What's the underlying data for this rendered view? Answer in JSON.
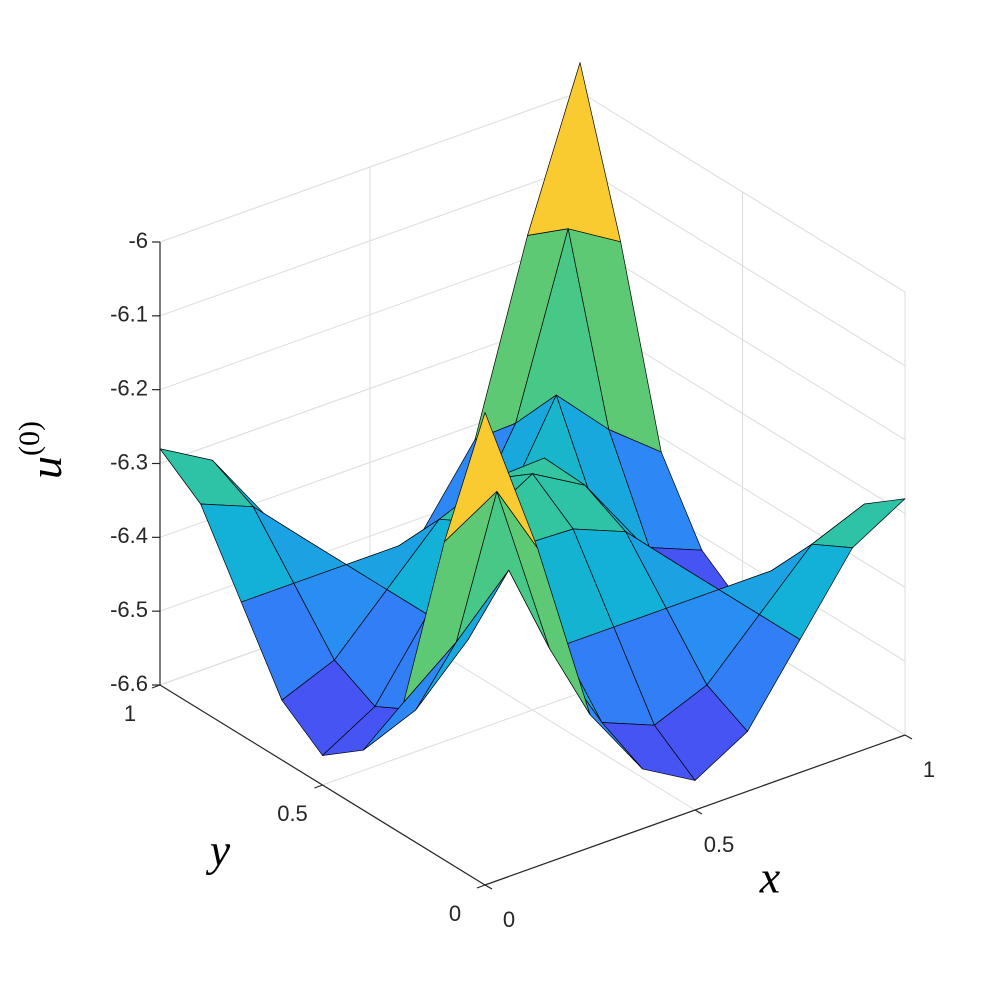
{
  "chart_data": {
    "type": "surface",
    "xlabel": "x",
    "ylabel": "y",
    "zlabel": [
      "u",
      "(0)"
    ],
    "x": [
      0,
      0.125,
      0.25,
      0.375,
      0.5,
      0.625,
      0.75,
      0.875,
      1
    ],
    "y": [
      0,
      0.125,
      0.25,
      0.375,
      0.5,
      0.625,
      0.75,
      0.875,
      1
    ],
    "z": [
      [
        -5.96,
        -6.169,
        -6.42,
        -6.519,
        -6.56,
        -6.519,
        -6.42,
        -6.321,
        -6.28
      ],
      [
        -6.169,
        -6.126,
        -6.364,
        -6.49,
        -6.519,
        -6.49,
        -6.42,
        -6.35,
        -6.321
      ],
      [
        -6.42,
        -6.364,
        -6.292,
        -6.42,
        -6.42,
        -6.42,
        -6.42,
        -6.42,
        -6.42
      ],
      [
        -6.519,
        -6.49,
        -6.42,
        -6.318,
        -6.321,
        -6.35,
        -6.42,
        -6.49,
        -6.519
      ],
      [
        -6.56,
        -6.519,
        -6.42,
        -6.321,
        -6.28,
        -6.321,
        -6.42,
        -6.519,
        -6.56
      ],
      [
        -6.519,
        -6.49,
        -6.42,
        -6.35,
        -6.321,
        -6.318,
        -6.42,
        -6.49,
        -6.519
      ],
      [
        -6.42,
        -6.42,
        -6.42,
        -6.42,
        -6.42,
        -6.42,
        -6.292,
        -6.364,
        -6.42
      ],
      [
        -6.321,
        -6.35,
        -6.42,
        -6.49,
        -6.519,
        -6.49,
        -6.364,
        -6.126,
        -6.169
      ],
      [
        -6.28,
        -6.321,
        -6.42,
        -6.519,
        -6.56,
        -6.519,
        -6.42,
        -6.169,
        -5.96
      ]
    ],
    "xlim": [
      0,
      1
    ],
    "ylim": [
      0,
      1
    ],
    "zlim": [
      -6.6,
      -6
    ],
    "xticks": [
      0,
      0.5,
      1
    ],
    "yticks": [
      0,
      0.5,
      1
    ],
    "zticks": [
      -6.6,
      -6.5,
      -6.4,
      -6.3,
      -6.2,
      -6.1,
      -6
    ],
    "grid": true,
    "colormap": "parula",
    "edgecolor": "#000000"
  }
}
